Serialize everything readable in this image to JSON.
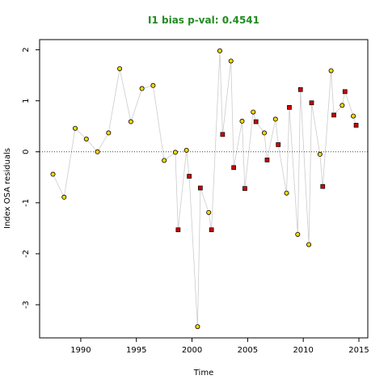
{
  "chart_data": {
    "type": "scatter",
    "title": "I1 bias p-val: 0.4541",
    "title_color": "#228B22",
    "xlabel": "Time",
    "ylabel": "Index OSA residuals",
    "xlim": [
      1986.3,
      2015.8
    ],
    "ylim": [
      -3.65,
      2.2
    ],
    "x_ticks": [
      1990,
      1995,
      2000,
      2005,
      2010,
      2015
    ],
    "x_tick_labels": [
      "1990",
      "1995",
      "2000",
      "2005",
      "2010",
      "2015"
    ],
    "y_ticks": [
      2,
      1,
      0,
      -1,
      -2,
      -3
    ],
    "y_tick_labels": [
      "2",
      "1",
      "0",
      "-1",
      "-2",
      "-3"
    ],
    "reference_line": {
      "y": 0,
      "style": "dotted"
    },
    "grid": false,
    "line_color": "#cccccc",
    "series": [
      {
        "marker": "circle",
        "color": "#FFD700",
        "points": [
          {
            "x": 1987.5,
            "y": -0.44
          },
          {
            "x": 1988.5,
            "y": -0.89
          },
          {
            "x": 1989.5,
            "y": 0.46
          },
          {
            "x": 1990.5,
            "y": 0.25
          },
          {
            "x": 1991.5,
            "y": 0.0
          },
          {
            "x": 1992.5,
            "y": 0.37
          },
          {
            "x": 1993.5,
            "y": 1.63
          },
          {
            "x": 1994.5,
            "y": 0.59
          },
          {
            "x": 1995.5,
            "y": 1.24
          },
          {
            "x": 1996.5,
            "y": 1.3
          },
          {
            "x": 1997.5,
            "y": -0.17
          },
          {
            "x": 1998.5,
            "y": -0.01
          },
          {
            "x": 1999.5,
            "y": 0.03
          },
          {
            "x": 2000.5,
            "y": -3.43
          },
          {
            "x": 2001.5,
            "y": -1.19
          },
          {
            "x": 2002.5,
            "y": 1.98
          },
          {
            "x": 2003.5,
            "y": 1.78
          },
          {
            "x": 2004.5,
            "y": 0.6
          },
          {
            "x": 2005.5,
            "y": 0.78
          },
          {
            "x": 2006.5,
            "y": 0.37
          },
          {
            "x": 2007.5,
            "y": 0.64
          },
          {
            "x": 2008.5,
            "y": -0.81
          },
          {
            "x": 2009.5,
            "y": -1.62
          },
          {
            "x": 2010.5,
            "y": -1.82
          },
          {
            "x": 2011.5,
            "y": -0.05
          },
          {
            "x": 2012.5,
            "y": 1.59
          },
          {
            "x": 2013.5,
            "y": 0.91
          },
          {
            "x": 2014.5,
            "y": 0.7
          }
        ]
      },
      {
        "marker": "square",
        "color": "#CC0000",
        "points": [
          {
            "x": 1998.75,
            "y": -1.53
          },
          {
            "x": 1999.75,
            "y": -0.48
          },
          {
            "x": 2000.75,
            "y": -0.71
          },
          {
            "x": 2001.75,
            "y": -1.53
          },
          {
            "x": 2002.75,
            "y": 0.34
          },
          {
            "x": 2003.75,
            "y": -0.31
          },
          {
            "x": 2004.75,
            "y": -0.72
          },
          {
            "x": 2005.75,
            "y": 0.59
          },
          {
            "x": 2006.75,
            "y": -0.16
          },
          {
            "x": 2007.75,
            "y": 0.14
          },
          {
            "x": 2008.75,
            "y": 0.87
          },
          {
            "x": 2009.75,
            "y": 1.22
          },
          {
            "x": 2010.75,
            "y": 0.96
          },
          {
            "x": 2011.75,
            "y": -0.68
          },
          {
            "x": 2012.75,
            "y": 0.72
          },
          {
            "x": 2013.75,
            "y": 1.18
          },
          {
            "x": 2014.75,
            "y": 0.52
          }
        ]
      }
    ]
  }
}
